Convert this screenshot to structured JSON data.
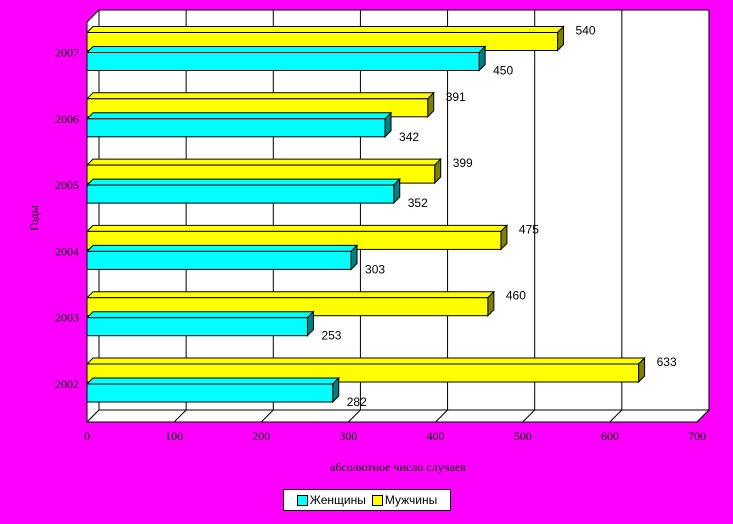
{
  "chart_data": {
    "type": "bar",
    "orientation": "horizontal",
    "categories": [
      "2002",
      "2003",
      "2004",
      "2005",
      "2006",
      "2007"
    ],
    "series": [
      {
        "name": "Женщины",
        "values": [
          282,
          253,
          303,
          352,
          342,
          450
        ],
        "color": "#00ffff"
      },
      {
        "name": "Мужчины",
        "values": [
          633,
          460,
          475,
          399,
          391,
          540
        ],
        "color": "#ffff00"
      }
    ],
    "xlabel": "абсолютное число случаев",
    "ylabel": "Годы",
    "xlim": [
      0,
      700
    ],
    "xticks": [
      "0",
      "100",
      "200",
      "300",
      "400",
      "500",
      "600",
      "700"
    ],
    "grid": true,
    "legend_position": "bottom",
    "colors": {
      "background": "#ff00ff",
      "plot": "#ffffff",
      "women": "#00ffff",
      "men": "#ffff00"
    }
  }
}
